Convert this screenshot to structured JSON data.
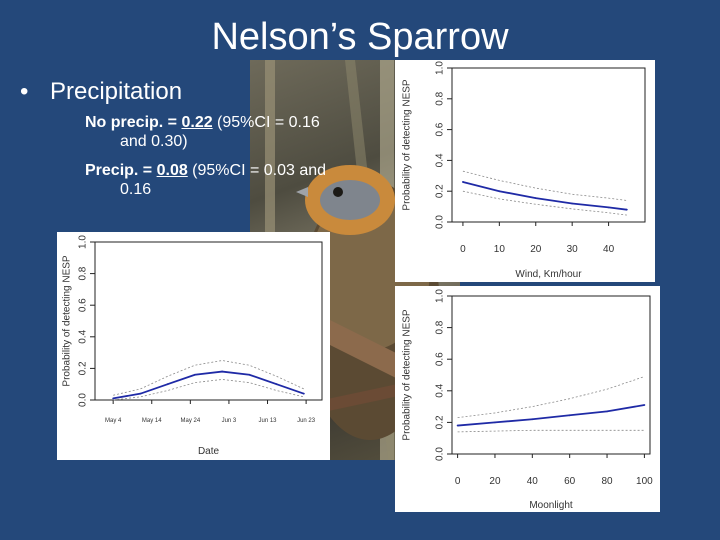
{
  "slide": {
    "title": "Nelson’s Sparrow",
    "bullet_marker": "•",
    "bullet": "Precipitation",
    "no_precip_label": "No precip. = ",
    "no_precip_value": "0.22",
    "no_precip_ci_a": " (95%CI = 0.16",
    "no_precip_ci_b": "and 0.30)",
    "precip_label": "Precip. = ",
    "precip_value": "0.08",
    "precip_ci_a": " (95%CI = 0.03 and",
    "precip_ci_b": "0.16"
  },
  "colors": {
    "background": "#24487a",
    "line": "#1f2aa6",
    "ci": "#8a8a8a"
  },
  "chart_data": [
    {
      "id": "wind",
      "type": "line",
      "xlabel": "Wind, Km/hour",
      "ylabel": "Probability of detecting NESP",
      "xlim": [
        -3,
        50
      ],
      "ylim": [
        0,
        1
      ],
      "xticks": [
        "0",
        "10",
        "20",
        "30",
        "40"
      ],
      "yticks": [
        "0.0",
        "0.2",
        "0.4",
        "0.6",
        "0.8",
        "1.0"
      ],
      "x": [
        0,
        10,
        20,
        30,
        40,
        45
      ],
      "y": [
        0.26,
        0.2,
        0.155,
        0.12,
        0.095,
        0.08
      ],
      "lower": [
        0.2,
        0.15,
        0.115,
        0.085,
        0.06,
        0.045
      ],
      "upper": [
        0.33,
        0.27,
        0.22,
        0.18,
        0.155,
        0.14
      ]
    },
    {
      "id": "date",
      "type": "line",
      "xlabel": "Date",
      "ylabel": "Probability of detecting NESP",
      "xlim": [
        0,
        100
      ],
      "ylim": [
        0,
        1
      ],
      "xticks": [
        "May 4",
        "May 14",
        "May 24",
        "Jun 3",
        "Jun 13",
        "Jun 23"
      ],
      "yticks": [
        "0.0",
        "0.2",
        "0.4",
        "0.6",
        "0.8",
        "1.0"
      ],
      "x": [
        8,
        20,
        32,
        44,
        56,
        68,
        80,
        92
      ],
      "y": [
        0.01,
        0.04,
        0.1,
        0.16,
        0.18,
        0.16,
        0.1,
        0.04
      ],
      "lower": [
        0.0,
        0.02,
        0.06,
        0.11,
        0.13,
        0.11,
        0.06,
        0.02
      ],
      "upper": [
        0.03,
        0.07,
        0.15,
        0.22,
        0.25,
        0.22,
        0.15,
        0.07
      ]
    },
    {
      "id": "moonlight",
      "type": "line",
      "xlabel": "Moonlight",
      "ylabel": "Probability of detecting NESP",
      "xlim": [
        -3,
        103
      ],
      "ylim": [
        0,
        1
      ],
      "xticks": [
        "0",
        "20",
        "40",
        "60",
        "80",
        "100"
      ],
      "yticks": [
        "0.0",
        "0.2",
        "0.4",
        "0.6",
        "0.8",
        "1.0"
      ],
      "x": [
        0,
        20,
        40,
        60,
        80,
        100
      ],
      "y": [
        0.18,
        0.2,
        0.22,
        0.245,
        0.27,
        0.31
      ],
      "lower": [
        0.14,
        0.145,
        0.15,
        0.15,
        0.15,
        0.15
      ],
      "upper": [
        0.23,
        0.26,
        0.3,
        0.35,
        0.41,
        0.49
      ]
    }
  ]
}
